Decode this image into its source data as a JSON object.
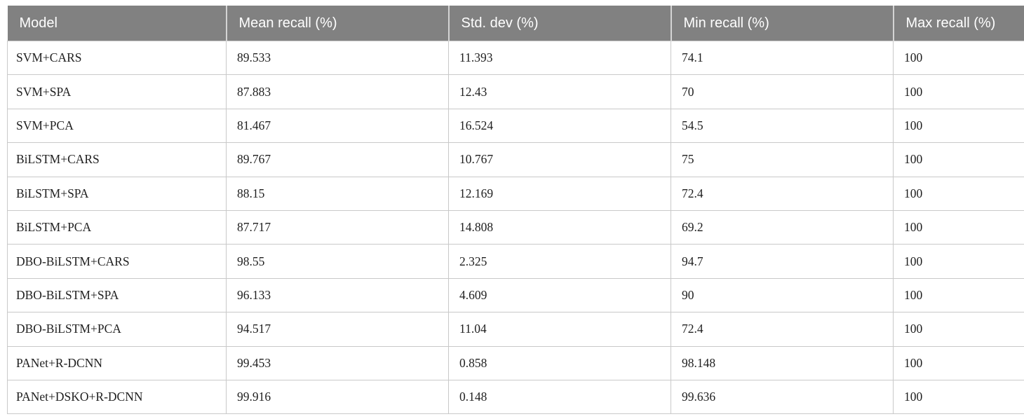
{
  "table": {
    "columns": [
      "Model",
      "Mean recall (%)",
      "Std. dev (%)",
      "Min recall (%)",
      "Max recall (%)"
    ],
    "rows": [
      [
        "SVM+CARS",
        "89.533",
        "11.393",
        "74.1",
        "100"
      ],
      [
        "SVM+SPA",
        "87.883",
        "12.43",
        "70",
        "100"
      ],
      [
        "SVM+PCA",
        "81.467",
        "16.524",
        "54.5",
        "100"
      ],
      [
        "BiLSTM+CARS",
        "89.767",
        "10.767",
        "75",
        "100"
      ],
      [
        "BiLSTM+SPA",
        "88.15",
        "12.169",
        "72.4",
        "100"
      ],
      [
        "BiLSTM+PCA",
        "87.717",
        "14.808",
        "69.2",
        "100"
      ],
      [
        "DBO-BiLSTM+CARS",
        "98.55",
        "2.325",
        "94.7",
        "100"
      ],
      [
        "DBO-BiLSTM+SPA",
        "96.133",
        "4.609",
        "90",
        "100"
      ],
      [
        "DBO-BiLSTM+PCA",
        "94.517",
        "11.04",
        "72.4",
        "100"
      ],
      [
        "PANet+R-DCNN",
        "99.453",
        "0.858",
        "98.148",
        "100"
      ],
      [
        "PANet+DSKO+R-DCNN",
        "99.916",
        "0.148",
        "99.636",
        "100"
      ]
    ],
    "colors": {
      "header_bg": "#818181",
      "header_text": "#ffffff",
      "body_border": "#c9c9c9",
      "body_text": "#1f1f1f"
    }
  }
}
